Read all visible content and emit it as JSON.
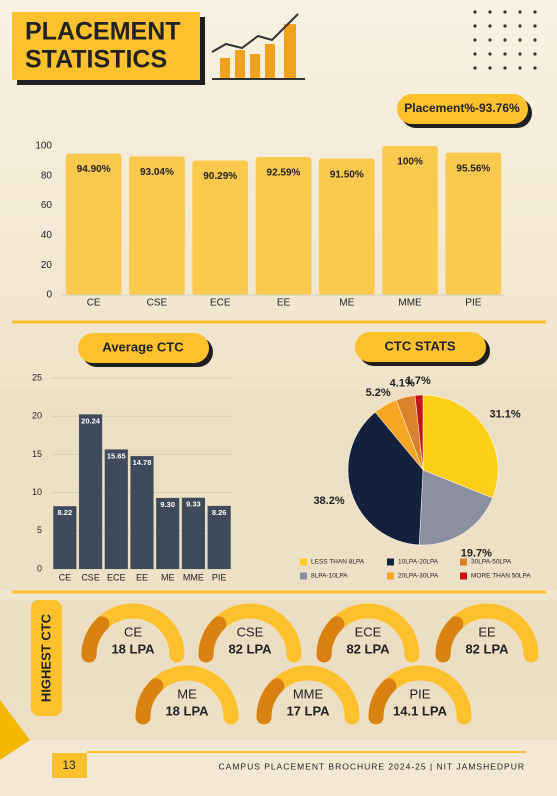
{
  "header": {
    "title_lines": [
      "PLACEMENT",
      "STATISTICS"
    ]
  },
  "chart_data": [
    {
      "type": "bar",
      "title": "Placement%-93.76%",
      "categories": [
        "CE",
        "CSE",
        "ECE",
        "EE",
        "ME",
        "MME",
        "PIE"
      ],
      "values": [
        94.9,
        93.04,
        90.29,
        92.59,
        91.5,
        100,
        95.56
      ],
      "value_labels": [
        "94.90%",
        "93.04%",
        "90.29%",
        "92.59%",
        "91.50%",
        "100%",
        "95.56%"
      ],
      "color": "#fcc94f",
      "ylim": [
        0,
        100
      ],
      "yticks": [
        0,
        20,
        40,
        60,
        80,
        100
      ],
      "grid": false
    },
    {
      "type": "bar",
      "title": "Average CTC",
      "categories": [
        "CE",
        "CSE",
        "ECE",
        "EE",
        "ME",
        "MME",
        "PIE"
      ],
      "values": [
        8.22,
        20.24,
        15.65,
        14.78,
        9.3,
        9.33,
        8.26
      ],
      "value_labels": [
        "8.22",
        "20.24",
        "15.65",
        "14.78",
        "9.30",
        "9.33",
        "8.26"
      ],
      "color": "#3f4a5a",
      "ylim": [
        0,
        25
      ],
      "yticks": [
        0,
        5,
        10,
        15,
        20,
        25
      ],
      "grid": true
    },
    {
      "type": "pie",
      "title": "CTC STATS",
      "categories": [
        "LESS THAN 8LPA",
        "8LPA-10LPA",
        "10LPA-20LPA",
        "20LPA-30LPA",
        "30LPA-50LPA",
        "MORE THAN 50LPA"
      ],
      "values": [
        31.1,
        19.7,
        38.2,
        5.2,
        4.1,
        1.7
      ],
      "value_labels": [
        "31.1%",
        "19.7%",
        "38.2%",
        "5.2%",
        "4.1%",
        "1.7%"
      ],
      "colors": [
        "#fdd017",
        "#8b8fa0",
        "#14213d",
        "#f5a623",
        "#d9822b",
        "#c0141a"
      ]
    }
  ],
  "highest_ctc": {
    "title": "HIGHEST CTC",
    "items": [
      {
        "branch": "CE",
        "ctc": "18 LPA"
      },
      {
        "branch": "CSE",
        "ctc": "82 LPA"
      },
      {
        "branch": "ECE",
        "ctc": "82 LPA"
      },
      {
        "branch": "EE",
        "ctc": "82 LPA"
      },
      {
        "branch": "ME",
        "ctc": "18 LPA"
      },
      {
        "branch": "MME",
        "ctc": "17 LPA"
      },
      {
        "branch": "PIE",
        "ctc": "14.1 LPA"
      }
    ]
  },
  "footer": {
    "page": "13",
    "text": "CAMPUS PLACEMENT BROCHURE 2024-25 | NIT JAMSHEDPUR"
  }
}
